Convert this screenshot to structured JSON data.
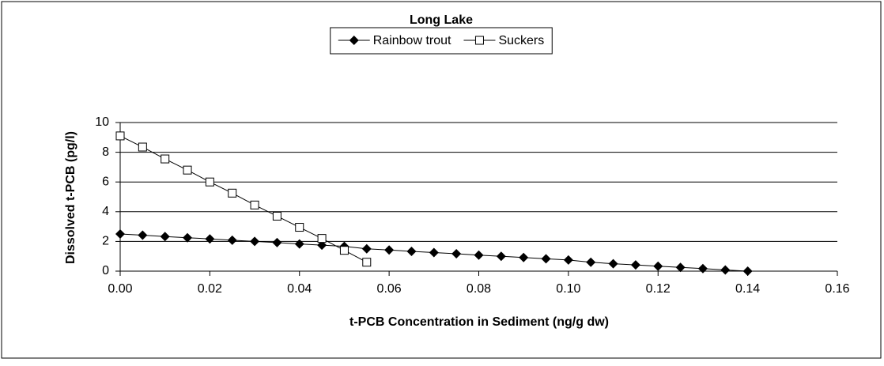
{
  "chart_data": {
    "type": "line",
    "title": "Long Lake",
    "xlabel": "t-PCB Concentration in Sediment (ng/g dw)",
    "ylabel": "Dissolved t-PCB (pg/l)",
    "xlim": [
      0,
      0.16
    ],
    "xticks": [
      {
        "value": 0,
        "label": "0.00"
      },
      {
        "value": 0.02,
        "label": "0.02"
      },
      {
        "value": 0.04,
        "label": "0.04"
      },
      {
        "value": 0.06,
        "label": "0.06"
      },
      {
        "value": 0.08,
        "label": "0.08"
      },
      {
        "value": 0.1,
        "label": "0.10"
      },
      {
        "value": 0.12,
        "label": "0.12"
      },
      {
        "value": 0.14,
        "label": "0.14"
      },
      {
        "value": 0.16,
        "label": "0.16"
      }
    ],
    "ylim": [
      0,
      10
    ],
    "yticks": [
      0,
      2,
      4,
      6,
      8,
      10
    ],
    "grid": true,
    "legend": "top",
    "series": [
      {
        "name": "Rainbow trout",
        "color": "#000000",
        "marker": "diamond",
        "x": [
          0,
          0.005,
          0.01,
          0.015,
          0.02,
          0.025,
          0.03,
          0.035,
          0.04,
          0.045,
          0.05,
          0.055,
          0.06,
          0.065,
          0.07,
          0.075,
          0.08,
          0.085,
          0.09,
          0.095,
          0.1,
          0.105,
          0.11,
          0.115,
          0.12,
          0.125,
          0.13,
          0.135,
          0.14
        ],
        "values": [
          2.5,
          2.42,
          2.33,
          2.25,
          2.17,
          2.08,
          2.0,
          1.92,
          1.83,
          1.75,
          1.67,
          1.5,
          1.42,
          1.33,
          1.25,
          1.17,
          1.08,
          1.0,
          0.92,
          0.83,
          0.75,
          0.6,
          0.5,
          0.42,
          0.33,
          0.25,
          0.17,
          0.08,
          0.0
        ]
      },
      {
        "name": "Suckers",
        "color": "#000000",
        "marker": "square",
        "x": [
          0,
          0.005,
          0.01,
          0.015,
          0.02,
          0.025,
          0.03,
          0.035,
          0.04,
          0.045,
          0.05,
          0.055
        ],
        "values": [
          9.1,
          8.35,
          7.55,
          6.8,
          6.0,
          5.25,
          4.45,
          3.7,
          2.95,
          2.2,
          1.4,
          0.6
        ]
      }
    ]
  }
}
